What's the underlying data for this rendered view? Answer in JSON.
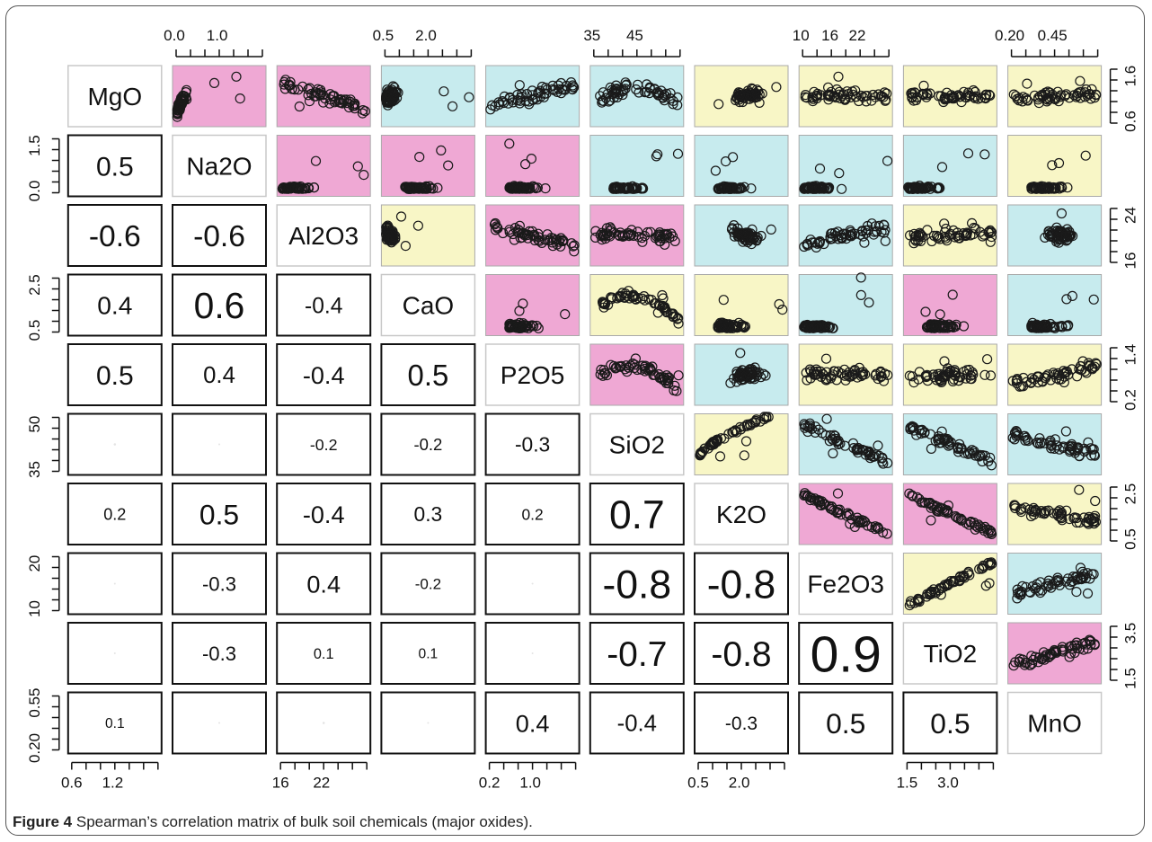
{
  "caption": {
    "label": "Figure 4",
    "text": "Spearman’s correlation matrix of bulk soil chemicals (major oxides)."
  },
  "colors": {
    "pink": "#efa8d4",
    "cyan": "#c7ebee",
    "yellow": "#f8f6c6",
    "frame": "#555555",
    "point": "#1a1a1a"
  },
  "chart_data": {
    "type": "scatter-matrix",
    "title": "",
    "variables": [
      "MgO",
      "Na2O",
      "Al2O3",
      "CaO",
      "P2O5",
      "SiO2",
      "K2O",
      "Fe2O3",
      "TiO2",
      "MnO"
    ],
    "variable_ranges": {
      "MgO": [
        0.5,
        1.75
      ],
      "Na2O": [
        0.0,
        1.6
      ],
      "Al2O3": [
        14,
        25
      ],
      "CaO": [
        0.2,
        2.8
      ],
      "P2O5": [
        0.0,
        1.6
      ],
      "SiO2": [
        30,
        55
      ],
      "K2O": [
        0.2,
        2.8
      ],
      "Fe2O3": [
        8,
        24
      ],
      "TiO2": [
        1.2,
        4.2
      ],
      "MnO": [
        0.15,
        0.6
      ]
    },
    "axes": {
      "top": [
        {
          "col": 1,
          "ticks": [
            "0.0",
            "1.0"
          ]
        },
        {
          "col": 3,
          "ticks": [
            "0.5",
            "2.0"
          ]
        },
        {
          "col": 5,
          "ticks": [
            "35",
            "45"
          ]
        },
        {
          "col": 7,
          "ticks": [
            "10",
            "16",
            "22"
          ]
        },
        {
          "col": 9,
          "ticks": [
            "0.20",
            "0.45"
          ]
        }
      ],
      "bottom": [
        {
          "col": 0,
          "ticks": [
            "0.6",
            "1.2"
          ]
        },
        {
          "col": 2,
          "ticks": [
            "16",
            "22"
          ]
        },
        {
          "col": 4,
          "ticks": [
            "0.2",
            "1.0"
          ]
        },
        {
          "col": 6,
          "ticks": [
            "0.5",
            "2.0"
          ]
        },
        {
          "col": 8,
          "ticks": [
            "1.5",
            "3.0"
          ]
        }
      ],
      "left": [
        {
          "row": 1,
          "ticks": [
            "0.0",
            "1.5"
          ]
        },
        {
          "row": 3,
          "ticks": [
            "0.5",
            "2.5"
          ]
        },
        {
          "row": 5,
          "ticks": [
            "35",
            "50"
          ]
        },
        {
          "row": 7,
          "ticks": [
            "10",
            "20"
          ]
        },
        {
          "row": 9,
          "ticks": [
            "0.20",
            "0.55"
          ]
        }
      ],
      "right": [
        {
          "row": 0,
          "ticks": [
            "0.6",
            "1.6"
          ]
        },
        {
          "row": 2,
          "ticks": [
            "16",
            "24"
          ]
        },
        {
          "row": 4,
          "ticks": [
            "0.2",
            "1.4"
          ]
        },
        {
          "row": 6,
          "ticks": [
            "0.5",
            "2.5"
          ]
        },
        {
          "row": 8,
          "ticks": [
            "1.5",
            "3.5"
          ]
        }
      ]
    },
    "correlations": [
      {
        "row": 1,
        "col": 0,
        "label": "0.5",
        "magnitude": 0.5
      },
      {
        "row": 2,
        "col": 0,
        "label": "-0.6",
        "magnitude": 0.6
      },
      {
        "row": 2,
        "col": 1,
        "label": "-0.6",
        "magnitude": 0.6
      },
      {
        "row": 3,
        "col": 0,
        "label": "0.4",
        "magnitude": 0.45
      },
      {
        "row": 3,
        "col": 1,
        "label": "0.6",
        "magnitude": 0.8
      },
      {
        "row": 3,
        "col": 2,
        "label": "-0.4",
        "magnitude": 0.35
      },
      {
        "row": 4,
        "col": 0,
        "label": "0.5",
        "magnitude": 0.5
      },
      {
        "row": 4,
        "col": 1,
        "label": "0.4",
        "magnitude": 0.38
      },
      {
        "row": 4,
        "col": 2,
        "label": "-0.4",
        "magnitude": 0.42
      },
      {
        "row": 4,
        "col": 3,
        "label": "0.5",
        "magnitude": 0.58
      },
      {
        "row": 5,
        "col": 0,
        "label": "",
        "magnitude": 0.04
      },
      {
        "row": 5,
        "col": 1,
        "label": "",
        "magnitude": 0.03
      },
      {
        "row": 5,
        "col": 2,
        "label": "-0.2",
        "magnitude": 0.16
      },
      {
        "row": 5,
        "col": 3,
        "label": "-0.2",
        "magnitude": 0.18
      },
      {
        "row": 5,
        "col": 4,
        "label": "-0.3",
        "magnitude": 0.3
      },
      {
        "row": 6,
        "col": 0,
        "label": "0.2",
        "magnitude": 0.17
      },
      {
        "row": 6,
        "col": 1,
        "label": "0.5",
        "magnitude": 0.55
      },
      {
        "row": 6,
        "col": 2,
        "label": "-0.4",
        "magnitude": 0.42
      },
      {
        "row": 6,
        "col": 3,
        "label": "0.3",
        "magnitude": 0.3
      },
      {
        "row": 6,
        "col": 4,
        "label": "0.2",
        "magnitude": 0.15
      },
      {
        "row": 6,
        "col": 5,
        "label": "0.7",
        "magnitude": 0.9
      },
      {
        "row": 7,
        "col": 0,
        "label": "",
        "magnitude": 0.01
      },
      {
        "row": 7,
        "col": 1,
        "label": "-0.3",
        "magnitude": 0.28
      },
      {
        "row": 7,
        "col": 2,
        "label": "0.4",
        "magnitude": 0.42
      },
      {
        "row": 7,
        "col": 3,
        "label": "-0.2",
        "magnitude": 0.14
      },
      {
        "row": 7,
        "col": 4,
        "label": "",
        "magnitude": 0.01
      },
      {
        "row": 7,
        "col": 5,
        "label": "-0.8",
        "magnitude": 0.9
      },
      {
        "row": 7,
        "col": 6,
        "label": "-0.8",
        "magnitude": 0.9
      },
      {
        "row": 8,
        "col": 0,
        "label": "",
        "magnitude": 0.0
      },
      {
        "row": 8,
        "col": 1,
        "label": "-0.3",
        "magnitude": 0.28
      },
      {
        "row": 8,
        "col": 2,
        "label": "0.1",
        "magnitude": 0.12
      },
      {
        "row": 8,
        "col": 3,
        "label": "0.1",
        "magnitude": 0.1
      },
      {
        "row": 8,
        "col": 4,
        "label": "",
        "magnitude": 0.0
      },
      {
        "row": 8,
        "col": 5,
        "label": "-0.7",
        "magnitude": 0.75
      },
      {
        "row": 8,
        "col": 6,
        "label": "-0.8",
        "magnitude": 0.75
      },
      {
        "row": 8,
        "col": 7,
        "label": "0.9",
        "magnitude": 1.25
      },
      {
        "row": 9,
        "col": 0,
        "label": "0.1",
        "magnitude": 0.1
      },
      {
        "row": 9,
        "col": 1,
        "label": "",
        "magnitude": 0.0
      },
      {
        "row": 9,
        "col": 2,
        "label": "",
        "magnitude": 0.04
      },
      {
        "row": 9,
        "col": 3,
        "label": "",
        "magnitude": 0.0
      },
      {
        "row": 9,
        "col": 4,
        "label": "0.4",
        "magnitude": 0.42
      },
      {
        "row": 9,
        "col": 5,
        "label": "-0.4",
        "magnitude": 0.38
      },
      {
        "row": 9,
        "col": 6,
        "label": "-0.3",
        "magnitude": 0.25
      },
      {
        "row": 9,
        "col": 7,
        "label": "0.5",
        "magnitude": 0.55
      },
      {
        "row": 9,
        "col": 8,
        "label": "0.5",
        "magnitude": 0.55
      }
    ],
    "panel_colors": [
      {
        "row": 0,
        "col": 1,
        "color": "pink"
      },
      {
        "row": 0,
        "col": 2,
        "color": "pink"
      },
      {
        "row": 0,
        "col": 3,
        "color": "cyan"
      },
      {
        "row": 0,
        "col": 4,
        "color": "cyan"
      },
      {
        "row": 0,
        "col": 5,
        "color": "cyan"
      },
      {
        "row": 0,
        "col": 6,
        "color": "yellow"
      },
      {
        "row": 0,
        "col": 7,
        "color": "yellow"
      },
      {
        "row": 0,
        "col": 8,
        "color": "yellow"
      },
      {
        "row": 0,
        "col": 9,
        "color": "yellow"
      },
      {
        "row": 1,
        "col": 2,
        "color": "pink"
      },
      {
        "row": 1,
        "col": 3,
        "color": "pink"
      },
      {
        "row": 1,
        "col": 4,
        "color": "pink"
      },
      {
        "row": 1,
        "col": 5,
        "color": "cyan"
      },
      {
        "row": 1,
        "col": 6,
        "color": "cyan"
      },
      {
        "row": 1,
        "col": 7,
        "color": "cyan"
      },
      {
        "row": 1,
        "col": 8,
        "color": "cyan"
      },
      {
        "row": 1,
        "col": 9,
        "color": "yellow"
      },
      {
        "row": 2,
        "col": 3,
        "color": "yellow"
      },
      {
        "row": 2,
        "col": 4,
        "color": "pink"
      },
      {
        "row": 2,
        "col": 5,
        "color": "pink"
      },
      {
        "row": 2,
        "col": 6,
        "color": "cyan"
      },
      {
        "row": 2,
        "col": 7,
        "color": "cyan"
      },
      {
        "row": 2,
        "col": 8,
        "color": "yellow"
      },
      {
        "row": 2,
        "col": 9,
        "color": "cyan"
      },
      {
        "row": 3,
        "col": 4,
        "color": "pink"
      },
      {
        "row": 3,
        "col": 5,
        "color": "yellow"
      },
      {
        "row": 3,
        "col": 6,
        "color": "yellow"
      },
      {
        "row": 3,
        "col": 7,
        "color": "cyan"
      },
      {
        "row": 3,
        "col": 8,
        "color": "pink"
      },
      {
        "row": 3,
        "col": 9,
        "color": "cyan"
      },
      {
        "row": 4,
        "col": 5,
        "color": "pink"
      },
      {
        "row": 4,
        "col": 6,
        "color": "cyan"
      },
      {
        "row": 4,
        "col": 7,
        "color": "yellow"
      },
      {
        "row": 4,
        "col": 8,
        "color": "yellow"
      },
      {
        "row": 4,
        "col": 9,
        "color": "yellow"
      },
      {
        "row": 5,
        "col": 6,
        "color": "yellow"
      },
      {
        "row": 5,
        "col": 7,
        "color": "cyan"
      },
      {
        "row": 5,
        "col": 8,
        "color": "cyan"
      },
      {
        "row": 5,
        "col": 9,
        "color": "cyan"
      },
      {
        "row": 6,
        "col": 7,
        "color": "pink"
      },
      {
        "row": 6,
        "col": 8,
        "color": "pink"
      },
      {
        "row": 6,
        "col": 9,
        "color": "yellow"
      },
      {
        "row": 7,
        "col": 8,
        "color": "yellow"
      },
      {
        "row": 7,
        "col": 9,
        "color": "cyan"
      },
      {
        "row": 8,
        "col": 9,
        "color": "pink"
      }
    ],
    "panel_trends": [
      {
        "row": 0,
        "col": 1,
        "slope": 0.6,
        "shape": "steep",
        "spread": 0.12
      },
      {
        "row": 0,
        "col": 2,
        "slope": -0.6,
        "shape": "linear",
        "spread": 0.13
      },
      {
        "row": 0,
        "col": 3,
        "slope": 0.4,
        "shape": "leftcluster",
        "spread": 0.12
      },
      {
        "row": 0,
        "col": 4,
        "slope": 0.45,
        "shape": "linear",
        "spread": 0.15
      },
      {
        "row": 0,
        "col": 5,
        "slope": 0.0,
        "shape": "hump",
        "spread": 0.14
      },
      {
        "row": 0,
        "col": 6,
        "slope": 0.2,
        "shape": "center",
        "spread": 0.14
      },
      {
        "row": 0,
        "col": 7,
        "slope": 0.0,
        "shape": "flat",
        "spread": 0.12
      },
      {
        "row": 0,
        "col": 8,
        "slope": 0.0,
        "shape": "flat",
        "spread": 0.14
      },
      {
        "row": 0,
        "col": 9,
        "slope": 0.1,
        "shape": "flat",
        "spread": 0.13
      },
      {
        "row": 1,
        "col": 2,
        "slope": -0.6,
        "shape": "floor",
        "spread": 0.05
      },
      {
        "row": 1,
        "col": 3,
        "slope": 0.3,
        "shape": "floor",
        "spread": 0.05
      },
      {
        "row": 1,
        "col": 4,
        "slope": 0.3,
        "shape": "floor",
        "spread": 0.05
      },
      {
        "row": 1,
        "col": 5,
        "slope": 0.0,
        "shape": "floor",
        "spread": 0.05
      },
      {
        "row": 1,
        "col": 6,
        "slope": 0.1,
        "shape": "floor",
        "spread": 0.05
      },
      {
        "row": 1,
        "col": 7,
        "slope": -0.2,
        "shape": "floor",
        "spread": 0.05
      },
      {
        "row": 1,
        "col": 8,
        "slope": -0.1,
        "shape": "floor",
        "spread": 0.05
      },
      {
        "row": 1,
        "col": 9,
        "slope": 0.0,
        "shape": "floor",
        "spread": 0.05
      },
      {
        "row": 2,
        "col": 3,
        "slope": -0.4,
        "shape": "leftcluster",
        "spread": 0.12
      },
      {
        "row": 2,
        "col": 4,
        "slope": -0.4,
        "shape": "linear",
        "spread": 0.15
      },
      {
        "row": 2,
        "col": 5,
        "slope": -0.1,
        "shape": "flat",
        "spread": 0.15
      },
      {
        "row": 2,
        "col": 6,
        "slope": -0.3,
        "shape": "center",
        "spread": 0.15
      },
      {
        "row": 2,
        "col": 7,
        "slope": 0.4,
        "shape": "linear",
        "spread": 0.15
      },
      {
        "row": 2,
        "col": 8,
        "slope": 0.1,
        "shape": "flat",
        "spread": 0.16
      },
      {
        "row": 2,
        "col": 9,
        "slope": 0.0,
        "shape": "center",
        "spread": 0.15
      },
      {
        "row": 3,
        "col": 4,
        "slope": 0.5,
        "shape": "floor",
        "spread": 0.1
      },
      {
        "row": 3,
        "col": 5,
        "slope": -0.2,
        "shape": "hump",
        "spread": 0.1
      },
      {
        "row": 3,
        "col": 6,
        "slope": 0.3,
        "shape": "floor",
        "spread": 0.1
      },
      {
        "row": 3,
        "col": 7,
        "slope": -0.2,
        "shape": "floor",
        "spread": 0.08
      },
      {
        "row": 3,
        "col": 8,
        "slope": 0.1,
        "shape": "floor",
        "spread": 0.09
      },
      {
        "row": 3,
        "col": 9,
        "slope": 0.0,
        "shape": "floor",
        "spread": 0.08
      },
      {
        "row": 4,
        "col": 5,
        "slope": -0.3,
        "shape": "hump",
        "spread": 0.14
      },
      {
        "row": 4,
        "col": 6,
        "slope": 0.3,
        "shape": "center",
        "spread": 0.14
      },
      {
        "row": 4,
        "col": 7,
        "slope": 0.0,
        "shape": "flat",
        "spread": 0.14
      },
      {
        "row": 4,
        "col": 8,
        "slope": 0.1,
        "shape": "flat",
        "spread": 0.15
      },
      {
        "row": 4,
        "col": 9,
        "slope": 0.4,
        "shape": "linear",
        "spread": 0.15
      },
      {
        "row": 5,
        "col": 6,
        "slope": 0.7,
        "shape": "curve",
        "spread": 0.1
      },
      {
        "row": 5,
        "col": 7,
        "slope": -0.8,
        "shape": "linear",
        "spread": 0.1
      },
      {
        "row": 5,
        "col": 8,
        "slope": -0.7,
        "shape": "linear",
        "spread": 0.12
      },
      {
        "row": 5,
        "col": 9,
        "slope": -0.4,
        "shape": "linear",
        "spread": 0.15
      },
      {
        "row": 6,
        "col": 7,
        "slope": -0.8,
        "shape": "linear",
        "spread": 0.07
      },
      {
        "row": 6,
        "col": 8,
        "slope": -0.8,
        "shape": "linear",
        "spread": 0.08
      },
      {
        "row": 6,
        "col": 9,
        "slope": -0.3,
        "shape": "flat",
        "spread": 0.12
      },
      {
        "row": 7,
        "col": 8,
        "slope": 0.9,
        "shape": "linear",
        "spread": 0.06
      },
      {
        "row": 7,
        "col": 9,
        "slope": 0.5,
        "shape": "linear",
        "spread": 0.13
      },
      {
        "row": 8,
        "col": 9,
        "slope": 0.5,
        "shape": "linear",
        "spread": 0.13
      }
    ]
  }
}
